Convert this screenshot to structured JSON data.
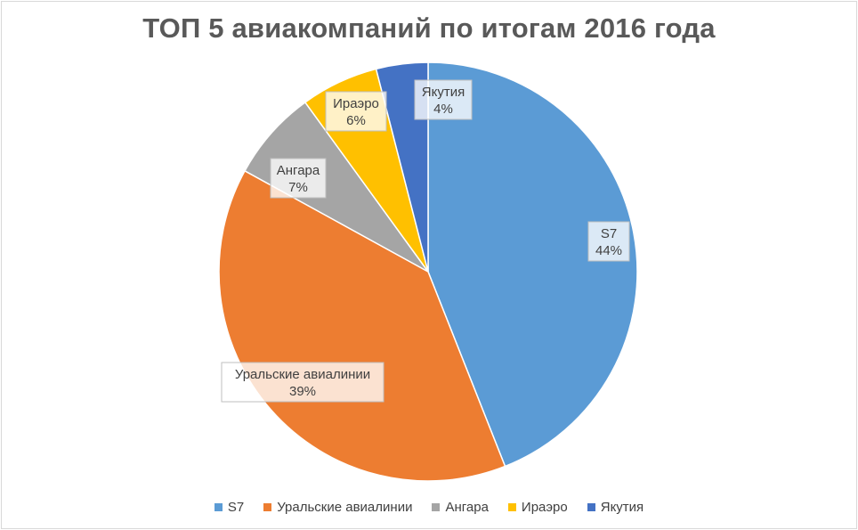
{
  "chart_data": {
    "type": "pie",
    "title": "ТОП 5 авиакомпаний  по итогам 2016 года",
    "categories": [
      "S7",
      "Уральские авиалинии",
      "Ангара",
      "Ираэро",
      "Якутия"
    ],
    "values": [
      44,
      39,
      7,
      6,
      4
    ],
    "value_labels": [
      "44%",
      "39%",
      "7%",
      "6%",
      "4%"
    ],
    "colors": [
      "#5b9bd5",
      "#ed7d31",
      "#a5a5a5",
      "#ffc000",
      "#4472c4"
    ],
    "legend_position": "bottom"
  }
}
